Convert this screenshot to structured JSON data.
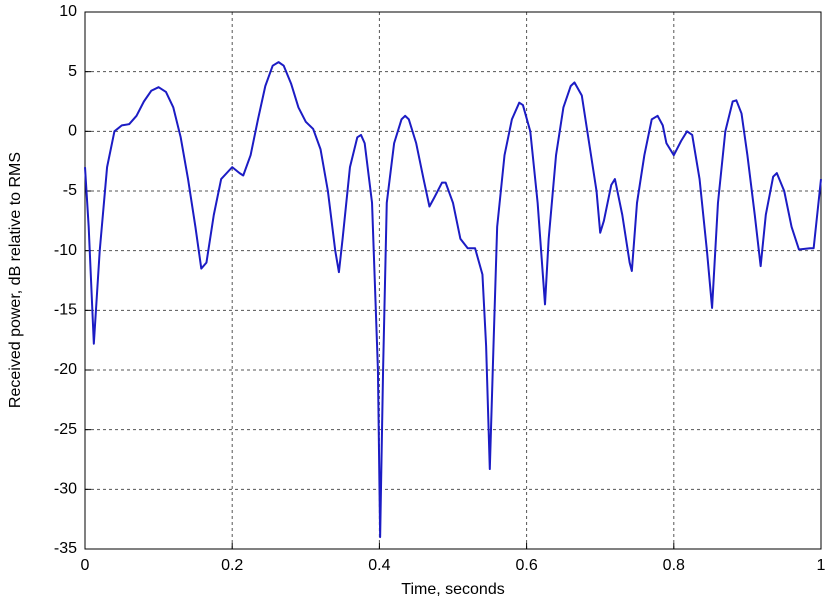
{
  "chart_data": {
    "type": "line",
    "xlabel": "Time, seconds",
    "ylabel": "Received power, dB relative to RMS",
    "xlim": [
      0,
      1
    ],
    "ylim": [
      -35,
      10
    ],
    "xticks": [
      0,
      0.2,
      0.4,
      0.6,
      0.8,
      1
    ],
    "yticks": [
      -35,
      -30,
      -25,
      -20,
      -15,
      -10,
      -5,
      0,
      5,
      10
    ],
    "grid": true,
    "x": [
      0,
      0.005,
      0.012,
      0.02,
      0.03,
      0.04,
      0.05,
      0.06,
      0.07,
      0.08,
      0.09,
      0.1,
      0.11,
      0.12,
      0.13,
      0.14,
      0.15,
      0.158,
      0.165,
      0.175,
      0.185,
      0.2,
      0.21,
      0.215,
      0.225,
      0.235,
      0.245,
      0.255,
      0.263,
      0.27,
      0.28,
      0.29,
      0.3,
      0.31,
      0.32,
      0.33,
      0.34,
      0.345,
      0.35,
      0.36,
      0.37,
      0.375,
      0.38,
      0.39,
      0.398,
      0.401,
      0.405,
      0.41,
      0.42,
      0.43,
      0.435,
      0.44,
      0.45,
      0.46,
      0.468,
      0.475,
      0.485,
      0.49,
      0.5,
      0.51,
      0.52,
      0.53,
      0.54,
      0.545,
      0.55,
      0.555,
      0.56,
      0.57,
      0.58,
      0.59,
      0.595,
      0.605,
      0.615,
      0.625,
      0.63,
      0.64,
      0.65,
      0.66,
      0.665,
      0.675,
      0.685,
      0.695,
      0.7,
      0.705,
      0.715,
      0.72,
      0.73,
      0.74,
      0.743,
      0.75,
      0.76,
      0.77,
      0.778,
      0.785,
      0.79,
      0.8,
      0.81,
      0.818,
      0.825,
      0.835,
      0.845,
      0.852,
      0.86,
      0.87,
      0.88,
      0.885,
      0.892,
      0.9,
      0.91,
      0.918,
      0.925,
      0.935,
      0.94,
      0.95,
      0.96,
      0.97,
      0.985,
      0.99,
      1
    ],
    "series": [
      {
        "name": "Received power",
        "color": "#1c1cc4",
        "values": [
          -3,
          -8,
          -17.8,
          -10,
          -3,
          0,
          0.5,
          0.6,
          1.3,
          2.5,
          3.4,
          3.7,
          3.3,
          2,
          -0.5,
          -4,
          -8,
          -11.5,
          -11,
          -7,
          -4,
          -3,
          -3.5,
          -3.7,
          -2,
          1,
          3.8,
          5.5,
          5.8,
          5.5,
          4,
          2,
          0.8,
          0.2,
          -1.5,
          -5,
          -10,
          -11.8,
          -9,
          -3,
          -0.5,
          -0.3,
          -1,
          -6,
          -20,
          -34,
          -20,
          -6,
          -1,
          1,
          1.3,
          1,
          -1,
          -4,
          -6.3,
          -5.5,
          -4.3,
          -4.3,
          -6,
          -9,
          -9.8,
          -9.8,
          -12,
          -18,
          -28.3,
          -18,
          -8,
          -2,
          1,
          2.4,
          2.2,
          0,
          -6,
          -14.5,
          -9,
          -2,
          2,
          3.8,
          4.1,
          3,
          -1,
          -5,
          -8.5,
          -7.5,
          -4.5,
          -4,
          -7,
          -11,
          -11.7,
          -6,
          -2,
          1,
          1.3,
          0.5,
          -1,
          -2,
          -0.8,
          0,
          -0.3,
          -4,
          -10,
          -14.8,
          -6,
          0,
          2.5,
          2.6,
          1.5,
          -2,
          -7,
          -11.3,
          -7,
          -3.8,
          -3.5,
          -5,
          -8,
          -9.9,
          -9.8,
          -9.8,
          -4
        ]
      }
    ]
  }
}
